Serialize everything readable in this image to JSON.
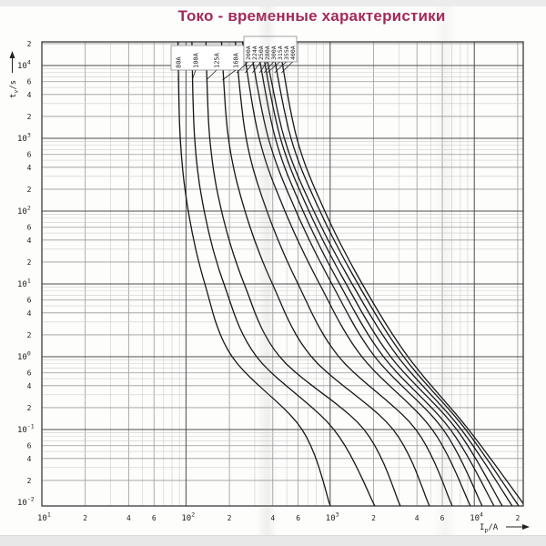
{
  "page": {
    "title": "Токо - временные характеристики",
    "title_color": "#a12a5a"
  },
  "colors": {
    "curve": "#161616",
    "frame": "#3a3a3a",
    "grid_decade": "#4d4d4d",
    "grid_mid": "#9a9a9a",
    "grid_light": "#cdcdcd",
    "label_box_border": "#8a8a8a"
  },
  "y_axis": {
    "quantity": "t",
    "subscript": "v",
    "unit": "/s",
    "decade_exponents": [
      4,
      3,
      2,
      1,
      0,
      -1,
      -2
    ],
    "minor_tick_labels": [
      "6",
      "4",
      "2"
    ],
    "top_tick_label": "2"
  },
  "x_axis": {
    "quantity": "I",
    "subscript": "p",
    "unit": "/A",
    "decade_exponents": [
      1,
      2,
      3,
      4
    ],
    "minor_tick_labels": [
      "2",
      "4",
      "6"
    ],
    "end_tick_label": "2"
  },
  "chart_data": {
    "type": "line",
    "title": "Токо - временные характеристики",
    "xlabel": "Ip/A",
    "ylabel": "tv/s",
    "x_scale": "log",
    "y_scale": "log",
    "x_range": [
      10,
      22000
    ],
    "y_range": [
      0.01,
      21000
    ],
    "grid": "log minor + major decades",
    "legend_position": "label boxes at curve tops",
    "anchor_times_s": [
      20000,
      1,
      0.1,
      0.01
    ],
    "anchor_log10t": [
      4.33,
      0,
      -1,
      -2.05
    ],
    "series": [
      {
        "label": "80A",
        "rating": 80,
        "log10I_at_anchor_t": [
          1.944,
          2.32,
          2.805,
          3.001
        ],
        "I_at_anchor_t_A": [
          88,
          209,
          638,
          1003
        ]
      },
      {
        "label": "100A",
        "rating": 100,
        "log10I_at_anchor_t": [
          2.041,
          2.49,
          3.026,
          3.31
        ],
        "I_at_anchor_t_A": [
          110,
          309,
          1062,
          2042
        ]
      },
      {
        "label": "125A",
        "rating": 125,
        "log10I_at_anchor_t": [
          2.138,
          2.65,
          3.235,
          3.487
        ],
        "I_at_anchor_t_A": [
          137,
          447,
          1718,
          3069
        ]
      },
      {
        "label": "160A",
        "rating": 160,
        "log10I_at_anchor_t": [
          2.246,
          2.87,
          3.437,
          3.689
        ],
        "I_at_anchor_t_A": [
          176,
          741,
          2735,
          4887
        ]
      },
      {
        "label": "200A",
        "rating": 200,
        "log10I_at_anchor_t": [
          2.342,
          3.06,
          3.594,
          3.847
        ],
        "I_at_anchor_t_A": [
          220,
          1148,
          3926,
          7031
        ]
      },
      {
        "label": "224A",
        "rating": 224,
        "log10I_at_anchor_t": [
          2.392,
          3.22,
          3.708,
          3.973
        ],
        "I_at_anchor_t_A": [
          246,
          1660,
          5105,
          9397
        ]
      },
      {
        "label": "250A",
        "rating": 250,
        "log10I_at_anchor_t": [
          2.439,
          3.31,
          3.784,
          4.055
        ],
        "I_at_anchor_t_A": [
          275,
          2042,
          6081,
          11350
        ]
      },
      {
        "label": "280A",
        "rating": 280,
        "log10I_at_anchor_t": [
          2.489,
          3.37,
          3.834,
          4.137
        ],
        "I_at_anchor_t_A": [
          308,
          2344,
          6823,
          13710
        ]
      },
      {
        "label": "300A",
        "rating": 300,
        "log10I_at_anchor_t": [
          2.519,
          3.42,
          3.878,
          4.194
        ],
        "I_at_anchor_t_A": [
          330,
          2630,
          7551,
          15630
        ]
      },
      {
        "label": "315A",
        "rating": 315,
        "log10I_at_anchor_t": [
          2.54,
          3.47,
          3.91,
          4.263
        ],
        "I_at_anchor_t_A": [
          347,
          2951,
          8128,
          18320
        ]
      },
      {
        "label": "355A",
        "rating": 355,
        "log10I_at_anchor_t": [
          2.592,
          3.51,
          3.94,
          4.308
        ],
        "I_at_anchor_t_A": [
          391,
          3236,
          8710,
          20320
        ]
      },
      {
        "label": "400A",
        "rating": 400,
        "log10I_at_anchor_t": [
          2.643,
          3.54,
          3.96,
          4.352
        ],
        "I_at_anchor_t_A": [
          440,
          3467,
          9120,
          22490
        ]
      }
    ]
  }
}
